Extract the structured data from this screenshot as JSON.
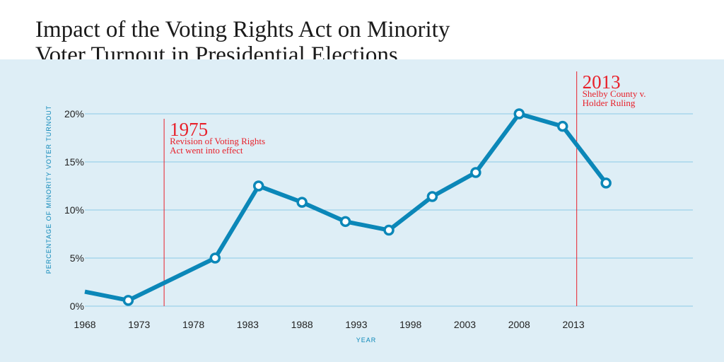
{
  "title_lines": [
    "Impact of the Voting Rights Act on Minority",
    "Voter Turnout in Presidential Elections"
  ],
  "colors": {
    "line": "#0b87b8",
    "background": "#deeef6",
    "grid": "#8ccbe6",
    "annotation": "#e8202a"
  },
  "chart_data": {
    "type": "line",
    "title": "Impact of the Voting Rights Act on Minority Voter Turnout in Presidential Elections",
    "xlabel": "YEAR",
    "ylabel": "PERCENTAGE OF MINORITY VOTER TURNOUT",
    "xlim": [
      1968,
      2024
    ],
    "ylim": [
      0,
      20
    ],
    "x_ticks": [
      1968,
      1973,
      1978,
      1983,
      1988,
      1993,
      1998,
      2003,
      2008,
      2013
    ],
    "y_ticks": [
      0,
      5,
      10,
      15,
      20
    ],
    "y_tick_labels": [
      "0%",
      "5%",
      "10%",
      "15%",
      "20%"
    ],
    "grid": true,
    "series": [
      {
        "name": "Minority voter turnout",
        "x": [
          1968,
          1972,
          1980,
          1984,
          1988,
          1992,
          1996,
          2000,
          2004,
          2008,
          2012,
          2016
        ],
        "values": [
          1.5,
          0.6,
          5.0,
          12.5,
          10.8,
          8.8,
          7.9,
          11.4,
          13.9,
          20.0,
          18.7,
          12.8
        ],
        "markers": [
          false,
          true,
          true,
          true,
          true,
          true,
          true,
          true,
          true,
          true,
          true,
          true
        ]
      }
    ],
    "annotations": [
      {
        "x": 1975.3,
        "year": "1975",
        "lines": [
          "Revision of Voting Rights",
          "Act went into effect"
        ]
      },
      {
        "x": 2013.3,
        "year": "2013",
        "lines": [
          "Shelby County v.",
          "Holder Ruling"
        ]
      }
    ]
  }
}
